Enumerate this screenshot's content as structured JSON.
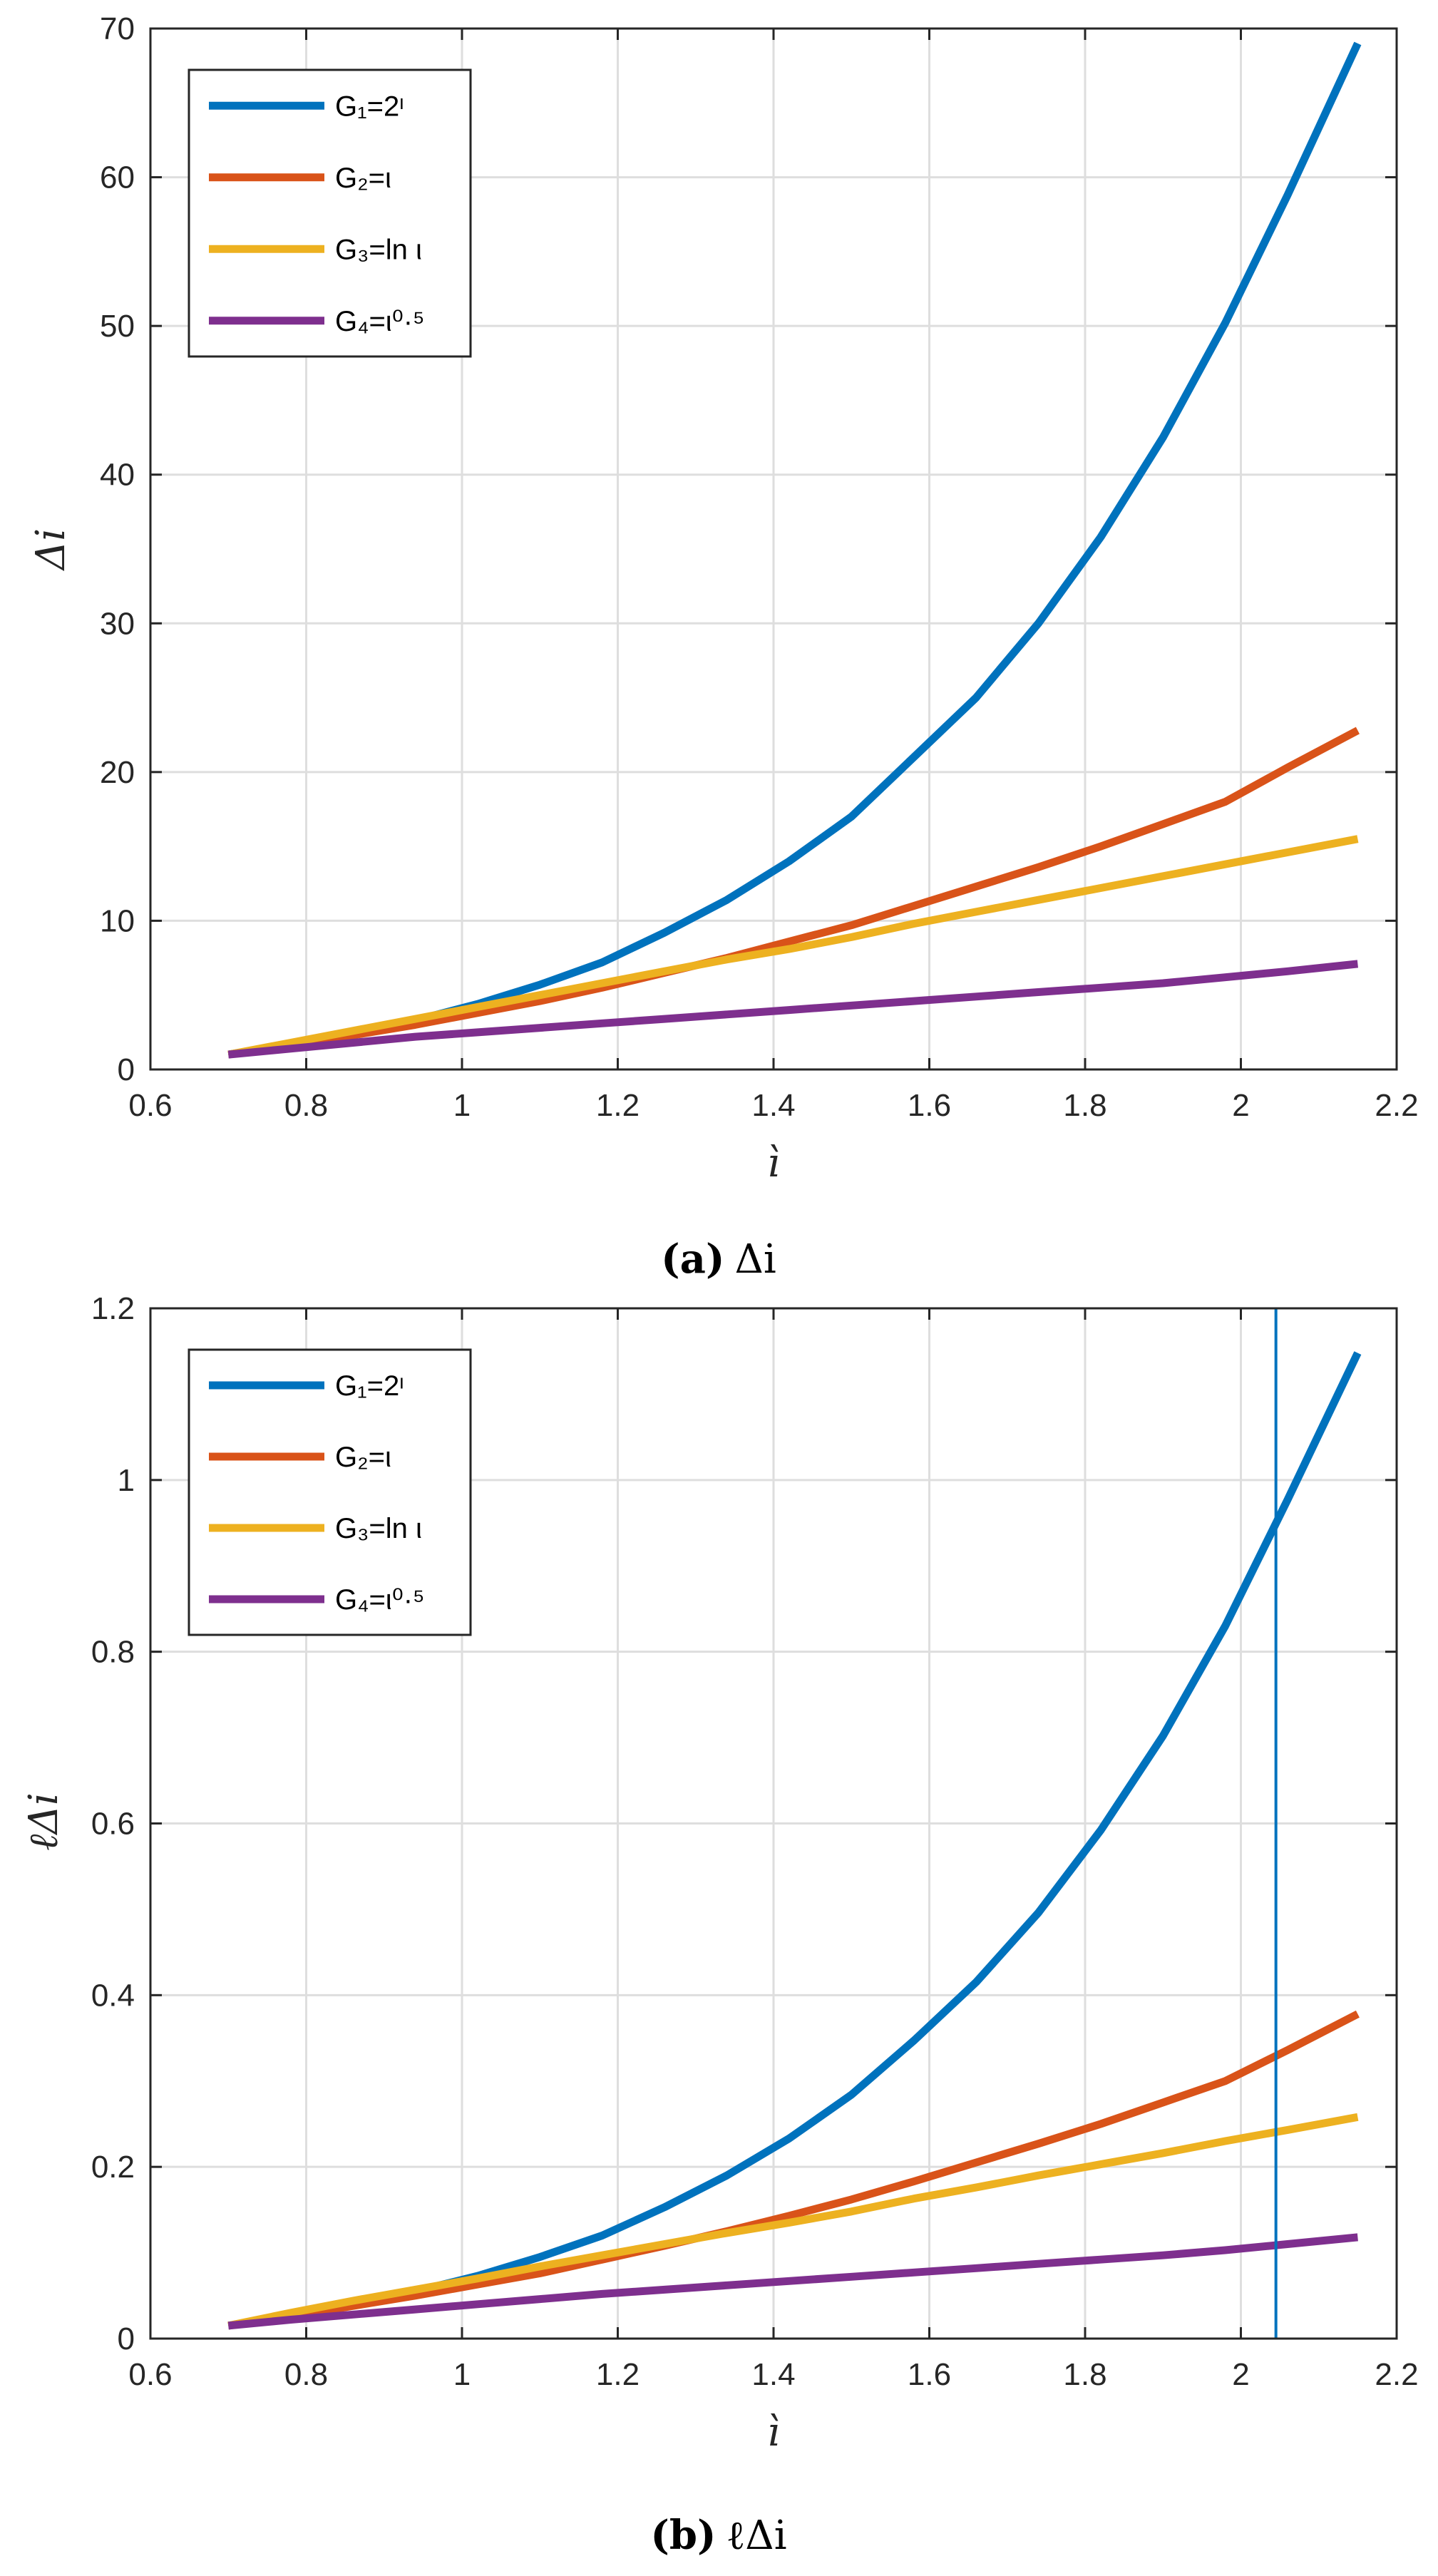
{
  "chart_data": [
    {
      "type": "line",
      "caption_label": "(a)",
      "caption_text": "Δi",
      "xlabel": "ì",
      "ylabel": "Δi",
      "xlim": [
        0.6,
        2.2
      ],
      "ylim": [
        0,
        70
      ],
      "xticks": [
        "0.6",
        "0.8",
        "1",
        "1.2",
        "1.4",
        "1.6",
        "1.8",
        "2",
        "2.2"
      ],
      "yticks": [
        "0",
        "10",
        "20",
        "30",
        "40",
        "50",
        "60",
        "70"
      ],
      "grid": true,
      "legend_position": "top-left",
      "x": [
        0.7,
        0.78,
        0.86,
        0.94,
        1.02,
        1.1,
        1.18,
        1.26,
        1.34,
        1.42,
        1.5,
        1.58,
        1.66,
        1.74,
        1.82,
        1.9,
        1.98,
        2.06,
        2.15
      ],
      "series": [
        {
          "name": "G1=2ι",
          "legend": "G₁=2ᶥ",
          "color": "#0072BD",
          "values": [
            1.0,
            1.7,
            2.5,
            3.3,
            4.4,
            5.7,
            7.2,
            9.2,
            11.4,
            14.0,
            17.0,
            21.0,
            25.0,
            30.0,
            35.8,
            42.5,
            50.2,
            58.8,
            69.0
          ]
        },
        {
          "name": "G2=ι",
          "legend": "G₂=ι",
          "color": "#D95319",
          "values": [
            1.0,
            1.6,
            2.3,
            3.0,
            3.8,
            4.6,
            5.5,
            6.5,
            7.5,
            8.6,
            9.7,
            11.0,
            12.3,
            13.6,
            15.0,
            16.5,
            18.0,
            20.3,
            22.8
          ]
        },
        {
          "name": "G3=ln ι",
          "legend": "G₃=ln ι",
          "color": "#EDB120",
          "values": [
            1.0,
            1.8,
            2.6,
            3.4,
            4.2,
            5.0,
            5.8,
            6.6,
            7.4,
            8.1,
            8.9,
            9.8,
            10.6,
            11.4,
            12.2,
            13.0,
            13.8,
            14.6,
            15.5
          ]
        },
        {
          "name": "G4=ι^0.5",
          "legend": "G₄=ι⁰·⁵",
          "color": "#7E2F8E",
          "values": [
            1.0,
            1.4,
            1.8,
            2.2,
            2.5,
            2.8,
            3.1,
            3.4,
            3.7,
            4.0,
            4.3,
            4.6,
            4.9,
            5.2,
            5.5,
            5.8,
            6.2,
            6.6,
            7.1
          ]
        }
      ]
    },
    {
      "type": "line",
      "caption_label": "(b)",
      "caption_text": "ℓΔi",
      "xlabel": "ì",
      "ylabel": "ℓΔi",
      "xlim": [
        0.6,
        2.2
      ],
      "ylim": [
        0,
        1.2
      ],
      "xticks": [
        "0.6",
        "0.8",
        "1",
        "1.2",
        "1.4",
        "1.6",
        "1.8",
        "2",
        "2.2"
      ],
      "yticks": [
        "0",
        "0.2",
        "0.4",
        "0.6",
        "0.8",
        "1",
        "1.2"
      ],
      "grid": true,
      "legend_position": "top-left",
      "vline_x": 2.045,
      "vline_color": "#0072BD",
      "x": [
        0.7,
        0.78,
        0.86,
        0.94,
        1.02,
        1.1,
        1.18,
        1.26,
        1.34,
        1.42,
        1.5,
        1.58,
        1.66,
        1.74,
        1.82,
        1.9,
        1.98,
        2.06,
        2.15
      ],
      "series": [
        {
          "name": "G1=2ι",
          "legend": "G₁=2ᶥ",
          "color": "#0072BD",
          "values": [
            0.015,
            0.028,
            0.041,
            0.055,
            0.073,
            0.095,
            0.12,
            0.153,
            0.19,
            0.233,
            0.284,
            0.347,
            0.415,
            0.496,
            0.592,
            0.702,
            0.83,
            0.977,
            1.148
          ]
        },
        {
          "name": "G2=ι",
          "legend": "G₂=ι",
          "color": "#D95319",
          "values": [
            0.015,
            0.026,
            0.038,
            0.05,
            0.063,
            0.076,
            0.092,
            0.108,
            0.125,
            0.143,
            0.162,
            0.183,
            0.205,
            0.227,
            0.25,
            0.275,
            0.3,
            0.336,
            0.378
          ]
        },
        {
          "name": "G3=ln ι",
          "legend": "G₃=ln ι",
          "color": "#EDB120",
          "values": [
            0.015,
            0.03,
            0.044,
            0.057,
            0.07,
            0.084,
            0.097,
            0.11,
            0.123,
            0.135,
            0.148,
            0.163,
            0.176,
            0.19,
            0.203,
            0.216,
            0.23,
            0.243,
            0.258
          ]
        },
        {
          "name": "G4=ι^0.5",
          "legend": "G₄=ι⁰·⁵",
          "color": "#7E2F8E",
          "values": [
            0.015,
            0.022,
            0.028,
            0.034,
            0.04,
            0.046,
            0.052,
            0.057,
            0.062,
            0.067,
            0.072,
            0.077,
            0.082,
            0.087,
            0.092,
            0.097,
            0.103,
            0.11,
            0.118
          ]
        }
      ]
    }
  ]
}
